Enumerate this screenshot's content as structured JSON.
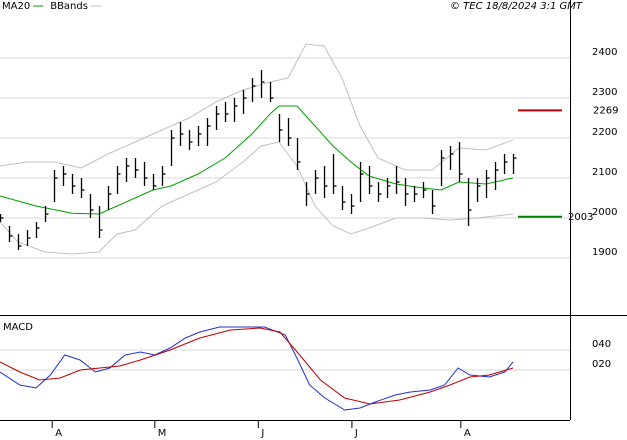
{
  "chart_data": [
    {
      "type": "ohlc",
      "credit": "© TEC 18/8/2024 3:1 GMT",
      "xlim": [
        0,
        63.33
      ],
      "ylim": [
        1757.5,
        2515
      ],
      "yticks": [
        1900,
        2000,
        2100,
        2200,
        2300,
        2400
      ],
      "grid": true,
      "bar_color": "#000000",
      "high": [
        2010,
        1980,
        1960,
        1970,
        1990,
        2030,
        2120,
        2130,
        2110,
        2100,
        2060,
        2030,
        2080,
        2130,
        2150,
        2150,
        2140,
        2110,
        2130,
        2220,
        2240,
        2220,
        2230,
        2250,
        2280,
        2290,
        2300,
        2320,
        2350,
        2370,
        2340,
        2260,
        2250,
        2200,
        2090,
        2120,
        2130,
        2160,
        2080,
        2060,
        2140,
        2130,
        2090,
        2100,
        2130,
        2100,
        2080,
        2090,
        2070,
        2170,
        2180,
        2190,
        2100,
        2100,
        2120,
        2140,
        2160,
        2160
      ],
      "low": [
        1990,
        1940,
        1920,
        1930,
        1950,
        1990,
        2040,
        2080,
        2060,
        2050,
        2000,
        1950,
        2020,
        2060,
        2090,
        2100,
        2080,
        2070,
        2080,
        2130,
        2180,
        2170,
        2180,
        2180,
        2220,
        2240,
        2240,
        2260,
        2290,
        2300,
        2290,
        2190,
        2180,
        2120,
        2030,
        2060,
        2050,
        2060,
        2020,
        2010,
        2040,
        2060,
        2040,
        2050,
        2060,
        2030,
        2040,
        2050,
        2010,
        2080,
        2120,
        2090,
        1980,
        2040,
        2050,
        2070,
        2110,
        2110
      ],
      "close": [
        2000,
        1955,
        1930,
        1950,
        1975,
        2010,
        2100,
        2110,
        2080,
        2070,
        2020,
        1970,
        2060,
        2110,
        2130,
        2120,
        2100,
        2080,
        2110,
        2200,
        2210,
        2190,
        2210,
        2230,
        2260,
        2260,
        2280,
        2300,
        2330,
        2340,
        2300,
        2220,
        2200,
        2140,
        2060,
        2100,
        2080,
        2080,
        2040,
        2030,
        2110,
        2080,
        2060,
        2080,
        2090,
        2060,
        2060,
        2070,
        2030,
        2150,
        2160,
        2110,
        2020,
        2080,
        2100,
        2120,
        2140,
        2150
      ],
      "series": [
        {
          "name": "MA20",
          "color": "#00a000",
          "x": [
            0,
            4,
            8,
            11,
            13,
            17,
            19,
            22,
            25,
            28,
            30,
            31,
            33,
            35,
            37,
            39,
            41,
            44,
            47,
            49,
            51,
            54,
            57
          ],
          "values": [
            2055,
            2030,
            2012,
            2010,
            2030,
            2070,
            2080,
            2110,
            2150,
            2210,
            2260,
            2280,
            2280,
            2230,
            2180,
            2140,
            2105,
            2085,
            2075,
            2070,
            2090,
            2085,
            2100
          ]
        },
        {
          "name": "BBands",
          "color": "#c0c0c0",
          "upper": {
            "x": [
              0,
              3,
              6,
              9,
              12,
              15,
              18,
              21,
              24,
              27,
              30,
              32,
              34,
              36,
              38,
              40,
              42,
              45,
              48,
              51,
              54,
              57
            ],
            "values": [
              2130,
              2140,
              2140,
              2125,
              2160,
              2190,
              2220,
              2250,
              2290,
              2320,
              2340,
              2350,
              2435,
              2430,
              2350,
              2230,
              2150,
              2120,
              2120,
              2175,
              2170,
              2195
            ]
          },
          "lower": {
            "x": [
              0,
              2,
              5,
              8,
              11,
              13,
              15,
              18,
              21,
              24,
              27,
              29,
              31,
              33,
              35,
              37,
              39,
              41,
              44,
              47,
              50,
              53,
              57
            ],
            "values": [
              1990,
              1940,
              1915,
              1910,
              1915,
              1960,
              1970,
              2030,
              2060,
              2090,
              2140,
              2180,
              2190,
              2130,
              2030,
              1980,
              1960,
              1975,
              2000,
              2000,
              1995,
              2000,
              2010
            ]
          }
        }
      ],
      "annotations": [
        {
          "value": 2269,
          "color": "#c00000"
        },
        {
          "value": 2003,
          "color": "#008000"
        }
      ]
    },
    {
      "type": "line",
      "title": "MACD",
      "xlim": [
        0,
        63.33
      ],
      "ylim": [
        -30,
        72
      ],
      "yticks": [
        {
          "value": 20,
          "label": "020"
        },
        {
          "value": 40,
          "label": "040"
        }
      ],
      "xticks": [
        {
          "value": 5.8,
          "label": "A"
        },
        {
          "value": 17.2,
          "label": "M"
        },
        {
          "value": 28.7,
          "label": "J"
        },
        {
          "value": 39.1,
          "label": "J"
        },
        {
          "value": 51.2,
          "label": "A"
        }
      ],
      "grid": true,
      "series": [
        {
          "color": "#2030d0",
          "x": [
            0,
            2.2,
            4,
            5.6,
            7.2,
            8.9,
            10.6,
            12.2,
            13.9,
            15.6,
            17.2,
            18.9,
            20.6,
            22.2,
            24.4,
            27.2,
            29.4,
            31.7,
            33.1,
            34.4,
            36.1,
            38.3,
            40,
            41.7,
            43.9,
            45.6,
            47.8,
            49.4,
            50.9,
            52.2,
            54.4,
            56.1,
            57
          ],
          "values": [
            18,
            5,
            2,
            15,
            35,
            30,
            18,
            22,
            35,
            38,
            35,
            42,
            52,
            58,
            63,
            63,
            63,
            55,
            30,
            5,
            -8,
            -20,
            -18,
            -12,
            -5,
            -2,
            0,
            5,
            22,
            15,
            13,
            18,
            28
          ]
        },
        {
          "color": "#c00000",
          "x": [
            0,
            2.2,
            4.4,
            6.7,
            8.9,
            11.1,
            13.3,
            15.6,
            18.9,
            22.2,
            25.6,
            28.9,
            31.1,
            33.3,
            35.6,
            38.3,
            41.1,
            44.4,
            47.8,
            50,
            52.2,
            54.4,
            57
          ],
          "values": [
            28,
            18,
            10,
            12,
            20,
            22,
            24,
            30,
            40,
            52,
            60,
            62,
            58,
            35,
            10,
            -8,
            -14,
            -10,
            -2,
            5,
            13,
            15,
            22
          ]
        }
      ]
    }
  ]
}
